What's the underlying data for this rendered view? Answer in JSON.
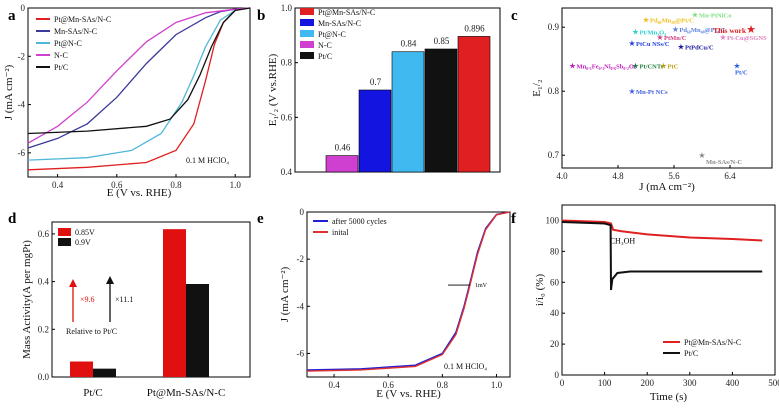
{
  "panels": [
    {
      "id": "a",
      "label": "a"
    },
    {
      "id": "b",
      "label": "b"
    },
    {
      "id": "c",
      "label": "c"
    },
    {
      "id": "d",
      "label": "d"
    },
    {
      "id": "e",
      "label": "e"
    },
    {
      "id": "f",
      "label": "f"
    }
  ],
  "chart_data": [
    {
      "panel": "a",
      "type": "line",
      "xlabel": "E (V vs. RHE)",
      "ylabel": "J (mA cm⁻²)",
      "xlim": [
        0.3,
        1.05
      ],
      "ylim": [
        -7,
        0
      ],
      "xticks": [
        0.4,
        0.6,
        0.8,
        1.0
      ],
      "yticks": [
        0,
        -2,
        -4,
        -6
      ],
      "annotation": "0.1 M HClO₄",
      "series": [
        {
          "name": "Pt@Mn-SAs/N-C",
          "color": "#e02020",
          "x": [
            0.3,
            0.5,
            0.7,
            0.8,
            0.86,
            0.9,
            0.93,
            0.96,
            1.0,
            1.05
          ],
          "y": [
            -6.7,
            -6.6,
            -6.4,
            -5.9,
            -4.8,
            -3.0,
            -1.5,
            -0.6,
            -0.1,
            0
          ]
        },
        {
          "name": "Mn-SAs/N-C",
          "color": "#3a3a9a",
          "x": [
            0.3,
            0.4,
            0.5,
            0.6,
            0.7,
            0.8,
            0.9,
            0.95,
            1.0,
            1.05
          ],
          "y": [
            -5.8,
            -5.4,
            -4.8,
            -3.7,
            -2.3,
            -1.1,
            -0.4,
            -0.15,
            -0.05,
            0
          ]
        },
        {
          "name": "Pt@N-C",
          "color": "#4fb8d8",
          "x": [
            0.3,
            0.5,
            0.65,
            0.75,
            0.82,
            0.86,
            0.9,
            0.95,
            1.0,
            1.05
          ],
          "y": [
            -6.3,
            -6.2,
            -5.9,
            -5.2,
            -3.9,
            -2.8,
            -1.6,
            -0.5,
            -0.1,
            0
          ]
        },
        {
          "name": "N-C",
          "color": "#d040d0",
          "x": [
            0.3,
            0.4,
            0.5,
            0.6,
            0.7,
            0.8,
            0.9,
            1.0,
            1.05
          ],
          "y": [
            -5.6,
            -4.9,
            -3.9,
            -2.6,
            -1.4,
            -0.6,
            -0.2,
            -0.05,
            0
          ]
        },
        {
          "name": "Pt/C",
          "color": "#111111",
          "x": [
            0.3,
            0.5,
            0.7,
            0.78,
            0.84,
            0.88,
            0.92,
            0.96,
            1.0,
            1.05
          ],
          "y": [
            -5.2,
            -5.1,
            -4.9,
            -4.6,
            -3.8,
            -2.8,
            -1.6,
            -0.6,
            -0.1,
            0
          ]
        }
      ]
    },
    {
      "panel": "b",
      "type": "bar",
      "ylabel": "E₁/₂ (V vs.RHE)",
      "ylim": [
        0.4,
        1.0
      ],
      "yticks": [
        0.4,
        0.6,
        0.8,
        1.0
      ],
      "categories": [
        "N-C",
        "Mn-SAs/N-C",
        "Pt@N-C",
        "Pt/C",
        "Pt@Mn-SAs/N-C"
      ],
      "values": [
        0.46,
        0.7,
        0.84,
        0.85,
        0.896
      ],
      "value_labels": [
        "0.46",
        "0.7",
        "0.84",
        "0.85",
        "0.896"
      ],
      "colors": [
        "#d040d0",
        "#1414e0",
        "#40b8f0",
        "#111111",
        "#e02020"
      ],
      "legend": [
        "Pt@Mn-SAs/N-C",
        "Mn-SAs/N-C",
        "Pt@N-C",
        "N-C",
        "Pt/C"
      ],
      "legend_colors": [
        "#e02020",
        "#1414e0",
        "#40b8f0",
        "#d040d0",
        "#111111"
      ]
    },
    {
      "panel": "c",
      "type": "scatter",
      "xlabel": "J (mA cm⁻²)",
      "ylabel": "E₁/₂",
      "xlim": [
        4.0,
        7.0
      ],
      "ylim": [
        0.68,
        0.93
      ],
      "xticks": [
        4.0,
        4.8,
        5.6,
        6.4
      ],
      "yticks": [
        0.7,
        0.8,
        0.9
      ],
      "points": [
        {
          "label": "Pd₈₀Mn₂₀@Pt/C",
          "x": 5.2,
          "y": 0.912,
          "color": "#f0c020"
        },
        {
          "label": "Mn-PtNiCo",
          "x": 5.9,
          "y": 0.92,
          "color": "#80e080"
        },
        {
          "label": "Pd₆₀Mn₄₀@Pt₄/C",
          "x": 5.62,
          "y": 0.897,
          "color": "#6080e0"
        },
        {
          "label": "Pt/Mn₃O₄",
          "x": 5.05,
          "y": 0.893,
          "color": "#30d0d0"
        },
        {
          "label": "PtMn/C",
          "x": 5.4,
          "y": 0.885,
          "color": "#d04080"
        },
        {
          "label": "PtCu NSs/C",
          "x": 5.0,
          "y": 0.875,
          "color": "#2040e0"
        },
        {
          "label": "Pt-Cu@SGNS",
          "x": 6.3,
          "y": 0.885,
          "color": "#e080c0"
        },
        {
          "label": "This work",
          "x": 6.7,
          "y": 0.896,
          "color": "#e02020"
        },
        {
          "label": "PtPdCu/C",
          "x": 5.7,
          "y": 0.87,
          "color": "#1a1a9a"
        },
        {
          "label": "Pt/CNTs",
          "x": 5.05,
          "y": 0.84,
          "color": "#208040"
        },
        {
          "label": "PtC",
          "x": 5.45,
          "y": 0.84,
          "color": "#c0a010"
        },
        {
          "label": "Pt/C",
          "x": 6.5,
          "y": 0.84,
          "color": "#3060e0"
        },
        {
          "label": "Mn₀.₁Fe₀.₁Ni₀.₆Sb₀.₂Oₓ",
          "x": 4.15,
          "y": 0.84,
          "color": "#c020c0"
        },
        {
          "label": "Mn-Pt NCs",
          "x": 5.0,
          "y": 0.8,
          "color": "#4060e0"
        },
        {
          "label": "Mn-SAs/N-C",
          "x": 6.0,
          "y": 0.7,
          "color": "#888888"
        }
      ]
    },
    {
      "panel": "d",
      "type": "bar",
      "ylabel": "Mass Activity(A per mgPt)",
      "ylim": [
        0,
        0.65
      ],
      "yticks": [
        0.0,
        0.2,
        0.4,
        0.6
      ],
      "categories": [
        "Pt/C",
        "Pt@Mn-SAs/N-C"
      ],
      "series": [
        {
          "name": "0.85V",
          "color": "#e01010",
          "values": [
            0.065,
            0.62
          ]
        },
        {
          "name": "0.9V",
          "color": "#111111",
          "values": [
            0.035,
            0.39
          ]
        }
      ],
      "annotations": [
        "×9.6",
        "×11.1",
        "Relative to Pt/C"
      ]
    },
    {
      "panel": "e",
      "type": "line",
      "xlabel": "E (V vs. RHE)",
      "ylabel": "J (mA cm⁻²)",
      "xlim": [
        0.3,
        1.05
      ],
      "ylim": [
        -7,
        0
      ],
      "xticks": [
        0.4,
        0.6,
        0.8,
        1.0
      ],
      "yticks": [
        0,
        -2,
        -4,
        -6
      ],
      "annotation": "0.1 M HClO₄",
      "shift_label": "1mV",
      "series": [
        {
          "name": "after 5000 cycles",
          "color": "#2020d0",
          "x": [
            0.3,
            0.5,
            0.7,
            0.8,
            0.85,
            0.88,
            0.9,
            0.93,
            0.96,
            1.0,
            1.05
          ],
          "y": [
            -6.7,
            -6.65,
            -6.5,
            -6.0,
            -5.1,
            -4.0,
            -3.1,
            -1.7,
            -0.7,
            -0.1,
            0
          ]
        },
        {
          "name": "inital",
          "color": "#e03030",
          "x": [
            0.3,
            0.5,
            0.7,
            0.8,
            0.85,
            0.88,
            0.9,
            0.93,
            0.96,
            1.0,
            1.05
          ],
          "y": [
            -6.75,
            -6.7,
            -6.55,
            -6.05,
            -5.2,
            -4.1,
            -3.2,
            -1.8,
            -0.75,
            -0.12,
            0
          ]
        }
      ]
    },
    {
      "panel": "f",
      "type": "line",
      "xlabel": "Time (s)",
      "ylabel": "i/i₀ (%)",
      "xlim": [
        0,
        500
      ],
      "ylim": [
        0,
        110
      ],
      "xticks": [
        0,
        100,
        200,
        300,
        400,
        500
      ],
      "yticks": [
        0,
        20,
        40,
        60,
        80,
        100
      ],
      "annotation": "CH₃OH",
      "series": [
        {
          "name": "Pt@Mn-SAs/N-C",
          "color": "#e02020",
          "x": [
            0,
            100,
            115,
            120,
            140,
            200,
            300,
            400,
            470
          ],
          "y": [
            100,
            99,
            98,
            94,
            93,
            91,
            89,
            88,
            87
          ]
        },
        {
          "name": "Pt/C",
          "color": "#111111",
          "x": [
            0,
            100,
            114,
            115,
            118,
            130,
            160,
            250,
            350,
            470
          ],
          "y": [
            99,
            98,
            97,
            55,
            62,
            66,
            67,
            67,
            67,
            67
          ]
        }
      ]
    }
  ]
}
